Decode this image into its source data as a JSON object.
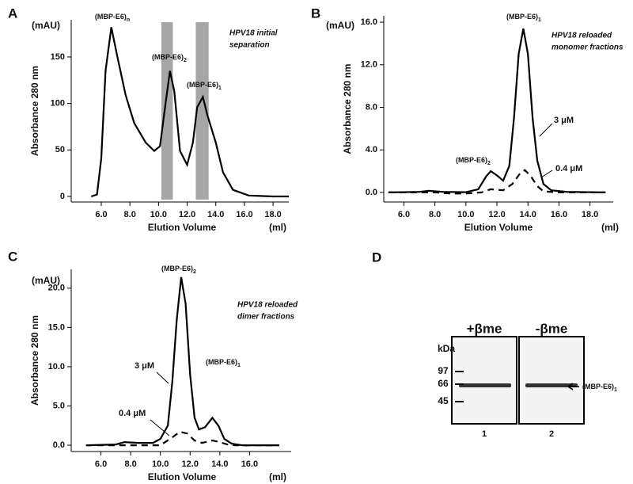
{
  "chart_data": [
    {
      "type": "line",
      "panel": "A",
      "y_unit": "(mAU)",
      "ylabel": "Absorbance 280 nm",
      "xlabel": "Elution Volume",
      "x_unit": "(ml)",
      "xlim": [
        3.9,
        19.1
      ],
      "ylim": [
        -6,
        190
      ],
      "xticks": [
        {
          "value": 6,
          "label": "6.0"
        },
        {
          "value": 8,
          "label": "8.0"
        },
        {
          "value": 10,
          "label": "10.0"
        },
        {
          "value": 12,
          "label": "12.0"
        },
        {
          "value": 14,
          "label": "14.0"
        },
        {
          "value": 16,
          "label": "16.0"
        },
        {
          "value": 18,
          "label": "18.0"
        }
      ],
      "yticks": [
        0,
        50,
        100,
        150
      ],
      "shaded_regions": [
        [
          10.2,
          11.0
        ],
        [
          12.6,
          13.5
        ]
      ],
      "shade_color": "#a6a6a6",
      "series": [
        {
          "color": "#000000",
          "dash": false,
          "x": [
            5.3,
            5.7,
            6.0,
            6.3,
            6.7,
            7.1,
            7.7,
            8.3,
            9.1,
            9.7,
            10.1,
            10.5,
            10.8,
            11.1,
            11.5,
            12.0,
            12.4,
            12.7,
            13.1,
            13.4,
            14.0,
            14.5,
            15.2,
            16.3,
            18.0,
            19.1
          ],
          "values": [
            0,
            2,
            41,
            135,
            182,
            152,
            109,
            79,
            58,
            49,
            54,
            101,
            135,
            113,
            49,
            34,
            58,
            96,
            107,
            88,
            58,
            26,
            7,
            1,
            0,
            0
          ]
        }
      ],
      "annotations": [
        {
          "text": "(MBP-E6)",
          "sub": "n"
        },
        {
          "text": "(MBP-E6)",
          "sub": "2"
        },
        {
          "text": "(MBP-E6)",
          "sub": "1"
        }
      ],
      "note": [
        "HPV18  initial",
        "separation"
      ]
    },
    {
      "type": "line",
      "panel": "B",
      "y_unit": "(mAU)",
      "ylabel": "Absorbance 280 nm",
      "xlabel": "Elution Volume",
      "x_unit": "(ml)",
      "xlim": [
        4.7,
        19.5
      ],
      "ylim": [
        -0.9,
        16.6
      ],
      "xticks": [
        {
          "value": 6,
          "label": "6.0"
        },
        {
          "value": 8,
          "label": "8.0"
        },
        {
          "value": 10,
          "label": "10.0"
        },
        {
          "value": 12,
          "label": "12.0"
        },
        {
          "value": 14,
          "label": "14.0"
        },
        {
          "value": 16,
          "label": "16.0"
        },
        {
          "value": 18,
          "label": "18.0"
        }
      ],
      "yticks": [
        {
          "value": 0,
          "label": "0.0"
        },
        {
          "value": 4,
          "label": "4.0"
        },
        {
          "value": 8,
          "label": "8.0"
        },
        {
          "value": 12,
          "label": "12.0"
        },
        {
          "value": 16,
          "label": "16.0"
        }
      ],
      "series": [
        {
          "name": "3 μM",
          "color": "#000000",
          "dash": false,
          "x": [
            5.0,
            7.0,
            7.6,
            8.5,
            10.0,
            10.8,
            11.3,
            11.6,
            12.0,
            12.4,
            12.8,
            13.1,
            13.4,
            13.7,
            14.0,
            14.3,
            14.6,
            15.0,
            15.5,
            16.5,
            19.0
          ],
          "values": [
            0,
            0.05,
            0.15,
            0.05,
            0.02,
            0.3,
            1.5,
            2.0,
            1.6,
            1.1,
            2.5,
            7,
            13,
            15.4,
            13,
            7,
            3,
            0.8,
            0.2,
            0.05,
            0
          ]
        },
        {
          "name": "0.4 μM",
          "color": "#000000",
          "dash": true,
          "x": [
            5.0,
            8.0,
            9.0,
            10.0,
            11.0,
            11.6,
            12.4,
            13.0,
            13.5,
            13.8,
            14.2,
            14.6,
            15.0,
            16.0,
            19.0
          ],
          "values": [
            0,
            0,
            -0.1,
            -0.1,
            0,
            0.3,
            0.2,
            0.8,
            1.8,
            2.1,
            1.5,
            0.6,
            0.1,
            0,
            0
          ]
        }
      ],
      "annotations": [
        {
          "text": "(MBP-E6)",
          "sub": "1"
        },
        {
          "text": "(MBP-E6)",
          "sub": "2"
        }
      ],
      "note": [
        "HPV18 reloaded",
        "monomer fractions"
      ]
    },
    {
      "type": "line",
      "panel": "C",
      "y_unit": "(mAU)",
      "ylabel": "Absorbance 280 nm",
      "xlabel": "Elution Volume",
      "x_unit": "(ml)",
      "xlim": [
        4.0,
        18.8
      ],
      "ylim": [
        -0.8,
        22.4
      ],
      "xticks": [
        {
          "value": 6,
          "label": "6.0"
        },
        {
          "value": 8,
          "label": "8.0"
        },
        {
          "value": 10,
          "label": "10.0"
        },
        {
          "value": 12,
          "label": "12.0"
        },
        {
          "value": 14,
          "label": "14.0"
        },
        {
          "value": 16,
          "label": "16.0"
        }
      ],
      "yticks": [
        {
          "value": 0,
          "label": "0.0"
        },
        {
          "value": 5,
          "label": "5.0"
        },
        {
          "value": 10,
          "label": "10.0"
        },
        {
          "value": 15,
          "label": "15.0"
        },
        {
          "value": 20,
          "label": "20.0"
        }
      ],
      "series": [
        {
          "name": "3 μM",
          "color": "#000000",
          "dash": false,
          "x": [
            5.0,
            7.0,
            7.6,
            8.5,
            9.5,
            10.0,
            10.5,
            10.8,
            11.1,
            11.4,
            11.7,
            12.0,
            12.3,
            12.6,
            13.0,
            13.5,
            13.9,
            14.3,
            14.8,
            15.5,
            18.0
          ],
          "values": [
            0,
            0.1,
            0.4,
            0.3,
            0.3,
            0.8,
            2.5,
            8,
            16,
            21.4,
            18,
            9,
            3.5,
            2.0,
            2.3,
            3.5,
            2.5,
            0.8,
            0.2,
            0,
            0
          ]
        },
        {
          "name": "0.4 μM",
          "color": "#000000",
          "dash": true,
          "x": [
            5.0,
            8.0,
            10.0,
            10.8,
            11.3,
            11.8,
            12.3,
            12.8,
            13.5,
            14.0,
            14.5,
            15.0,
            18.0
          ],
          "values": [
            0,
            0,
            0,
            1.0,
            1.7,
            1.5,
            0.6,
            0.3,
            0.6,
            0.4,
            0.1,
            0,
            0
          ]
        }
      ],
      "annotations": [
        {
          "text": "(MBP-E6)",
          "sub": "2"
        },
        {
          "text": "(MBP-E6)",
          "sub": "1"
        }
      ],
      "note": [
        "HPV18 reloaded",
        "dimer fractions"
      ]
    }
  ],
  "gel": {
    "panel": "D",
    "unit": "kDa",
    "markers": [
      "97",
      "66",
      "45"
    ],
    "lanes": [
      {
        "label": "+βme",
        "number": "1"
      },
      {
        "label": "-βme",
        "number": "2"
      }
    ],
    "band_label": {
      "text": "(MBP-E6)",
      "sub": "1"
    }
  }
}
